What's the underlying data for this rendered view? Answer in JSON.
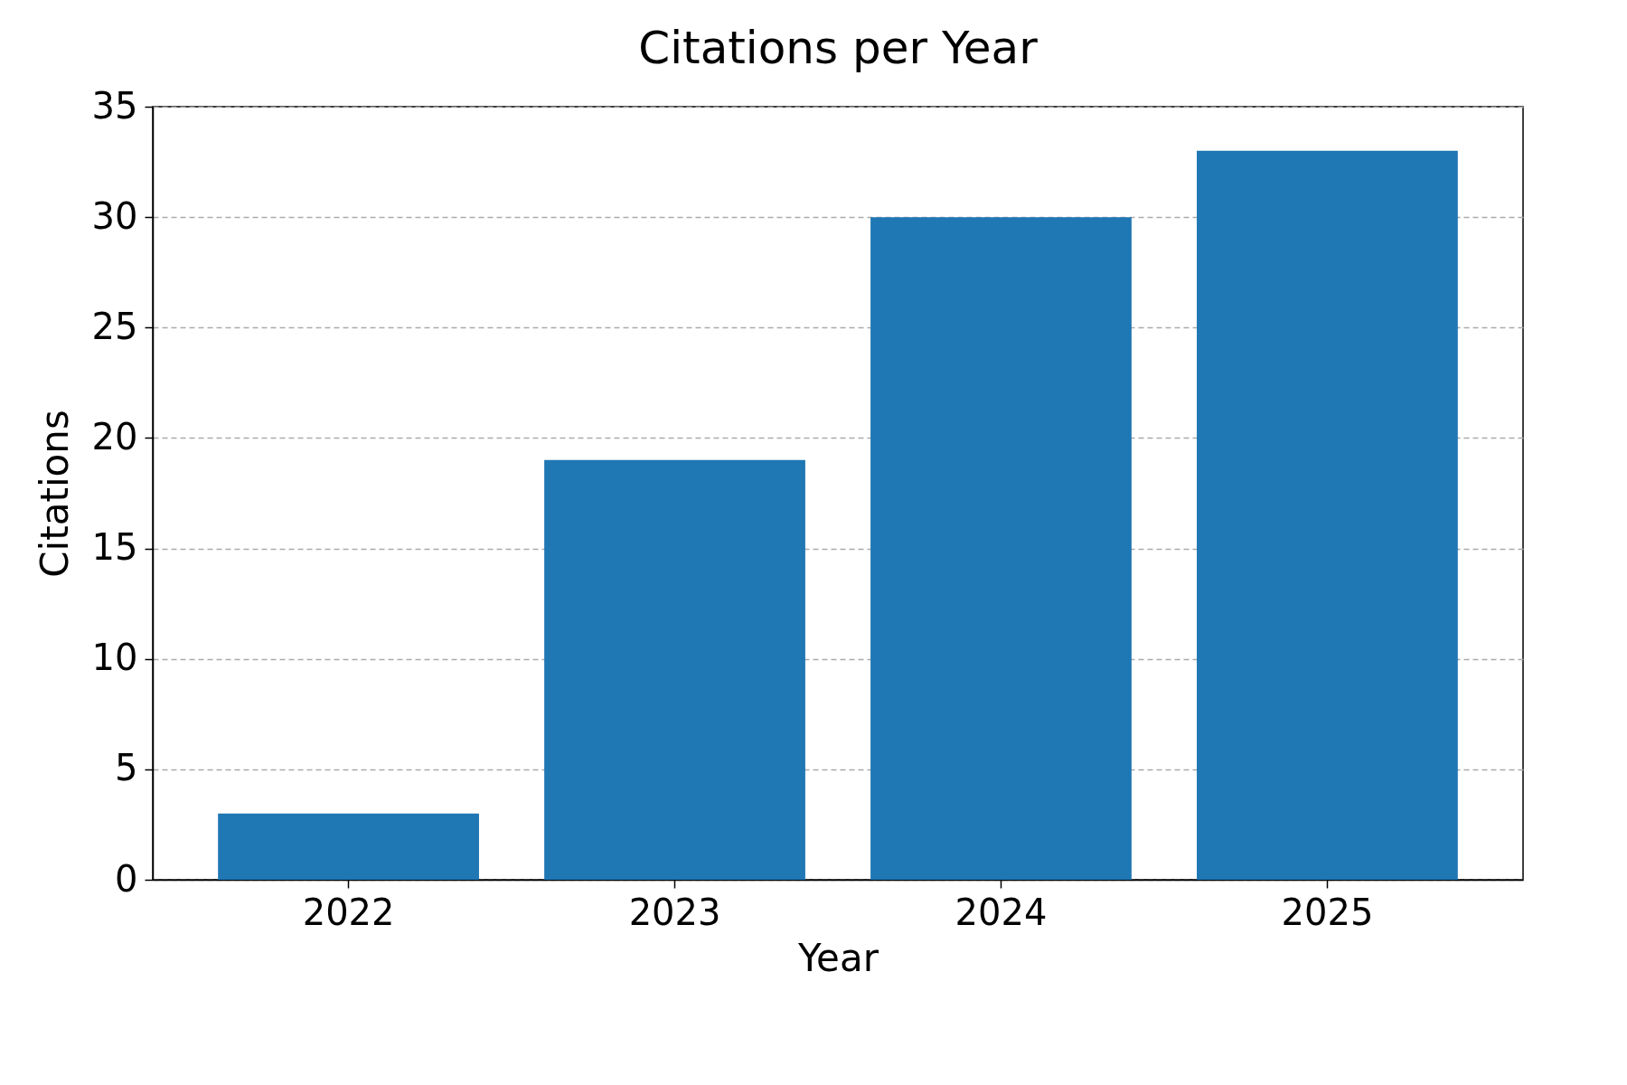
{
  "chart_data": {
    "type": "bar",
    "title": "Citations per Year",
    "xlabel": "Year",
    "ylabel": "Citations",
    "categories": [
      "2022",
      "2023",
      "2024",
      "2025"
    ],
    "values": [
      3,
      19,
      30,
      33
    ],
    "color": "#1f77b4",
    "ylim": [
      0,
      35
    ],
    "yticks": [
      0,
      5,
      10,
      15,
      20,
      25,
      30,
      35
    ],
    "grid": "y"
  }
}
